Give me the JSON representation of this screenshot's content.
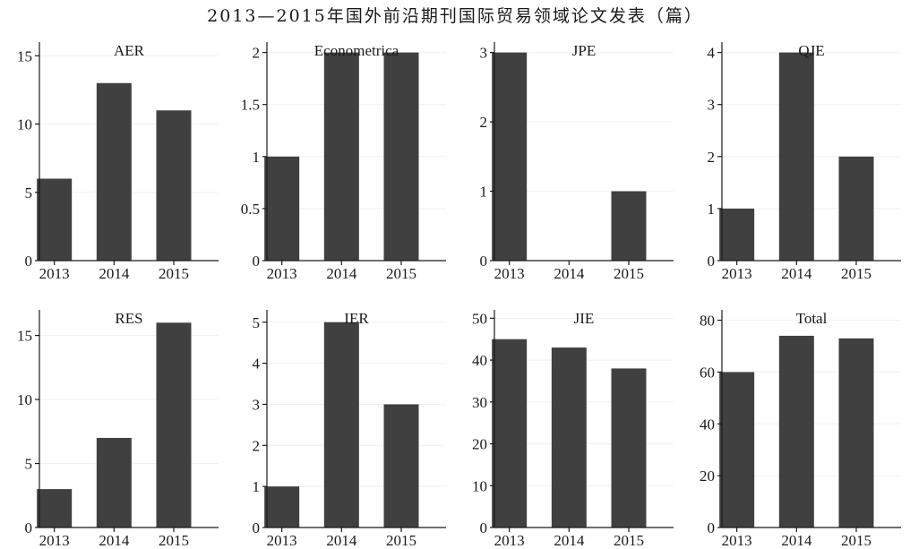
{
  "title": "2013—2015年国外前沿期刊国际贸易领域论文发表（篇）",
  "bar_color": "#404040",
  "chart_data": [
    {
      "type": "bar",
      "title": "AER",
      "categories": [
        "2013",
        "2014",
        "2015"
      ],
      "values": [
        6,
        13,
        11
      ],
      "ylim": [
        0,
        16
      ],
      "yticks": [
        0,
        5,
        10,
        15
      ],
      "ytick_labels": [
        "0",
        "5",
        "10",
        "15"
      ]
    },
    {
      "type": "bar",
      "title": "Econometrica",
      "categories": [
        "2013",
        "2014",
        "2015"
      ],
      "values": [
        1,
        2,
        2
      ],
      "ylim": [
        0,
        2.1
      ],
      "yticks": [
        0,
        0.5,
        1,
        1.5,
        2
      ],
      "ytick_labels": [
        "0",
        "0.5",
        "1",
        "1.5",
        "2"
      ]
    },
    {
      "type": "bar",
      "title": "JPE",
      "categories": [
        "2013",
        "2014",
        "2015"
      ],
      "values": [
        3,
        0,
        1
      ],
      "ylim": [
        0,
        3.15
      ],
      "yticks": [
        0,
        1,
        2,
        3
      ],
      "ytick_labels": [
        "0",
        "1",
        "2",
        "3"
      ]
    },
    {
      "type": "bar",
      "title": "QJE",
      "categories": [
        "2013",
        "2014",
        "2015"
      ],
      "values": [
        1,
        4,
        2
      ],
      "ylim": [
        0,
        4.2
      ],
      "yticks": [
        0,
        1,
        2,
        3,
        4
      ],
      "ytick_labels": [
        "0",
        "1",
        "2",
        "3",
        "4"
      ]
    },
    {
      "type": "bar",
      "title": "RES",
      "categories": [
        "2013",
        "2014",
        "2015"
      ],
      "values": [
        3,
        7,
        16
      ],
      "ylim": [
        0,
        17
      ],
      "yticks": [
        0,
        5,
        10,
        15
      ],
      "ytick_labels": [
        "0",
        "5",
        "10",
        "15"
      ]
    },
    {
      "type": "bar",
      "title": "IER",
      "categories": [
        "2013",
        "2014",
        "2015"
      ],
      "values": [
        1,
        5,
        3
      ],
      "ylim": [
        0,
        5.3
      ],
      "yticks": [
        0,
        1,
        2,
        3,
        4,
        5
      ],
      "ytick_labels": [
        "0",
        "1",
        "2",
        "3",
        "4",
        "5"
      ]
    },
    {
      "type": "bar",
      "title": "JIE",
      "categories": [
        "2013",
        "2014",
        "2015"
      ],
      "values": [
        45,
        43,
        38
      ],
      "ylim": [
        0,
        52
      ],
      "yticks": [
        0,
        10,
        20,
        30,
        40,
        50
      ],
      "ytick_labels": [
        "0",
        "10",
        "20",
        "30",
        "40",
        "50"
      ]
    },
    {
      "type": "bar",
      "title": "Total",
      "categories": [
        "2013",
        "2014",
        "2015"
      ],
      "values": [
        60,
        74,
        73
      ],
      "ylim": [
        0,
        84
      ],
      "yticks": [
        0,
        20,
        40,
        60,
        80
      ],
      "ytick_labels": [
        "0",
        "20",
        "40",
        "60",
        "80"
      ]
    }
  ]
}
